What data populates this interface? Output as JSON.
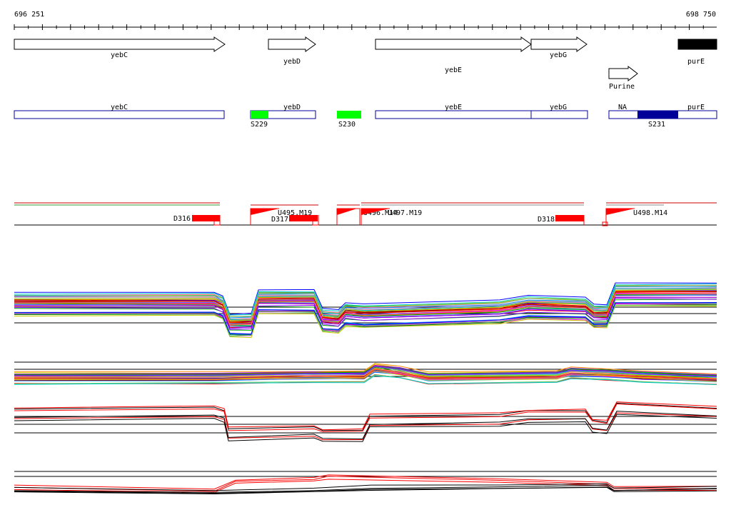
{
  "coords": {
    "start": "696 251",
    "end": "698 750"
  },
  "genes": [
    {
      "name": "yebC",
      "dir": "forward",
      "fill": "#ffffff"
    },
    {
      "name": "yebD",
      "dir": "forward",
      "fill": "#ffffff"
    },
    {
      "name": "yebE",
      "dir": "forward",
      "fill": "#ffffff"
    },
    {
      "name": "yebG",
      "dir": "forward",
      "fill": "#ffffff"
    },
    {
      "name": "purE",
      "dir": "reverse",
      "fill": "#000000"
    }
  ],
  "promoter": {
    "name": "Purine"
  },
  "transcripts": [
    {
      "name": "yebC"
    },
    {
      "name": "yebD"
    },
    {
      "name": "yebE"
    },
    {
      "name": "yebG"
    },
    {
      "name": "NA"
    },
    {
      "name": "purE"
    }
  ],
  "features": [
    {
      "name": "S229",
      "color": "#00ff00"
    },
    {
      "name": "S230",
      "color": "#00ff00"
    },
    {
      "name": "S231",
      "color": "#000099"
    }
  ],
  "segments": [
    {
      "name": "D316"
    },
    {
      "name": "D317"
    },
    {
      "name": "D318"
    },
    {
      "name": "U495.M19"
    },
    {
      "name": "U496.M14"
    },
    {
      "name": "U497.M19"
    },
    {
      "name": "U498.M14"
    }
  ],
  "colors": {
    "transcript_border": "#000099",
    "segment_red": "#ff0000",
    "track_palette": [
      "#ff0000",
      "#00aa00",
      "#0000ff",
      "#ff00ff",
      "#00cccc",
      "#cccc00",
      "#ff8800",
      "#8800ff",
      "#008800",
      "#880000",
      "#0088ff",
      "#aa6600",
      "#ff66aa",
      "#66cc66",
      "#6666ff",
      "#999999"
    ]
  }
}
